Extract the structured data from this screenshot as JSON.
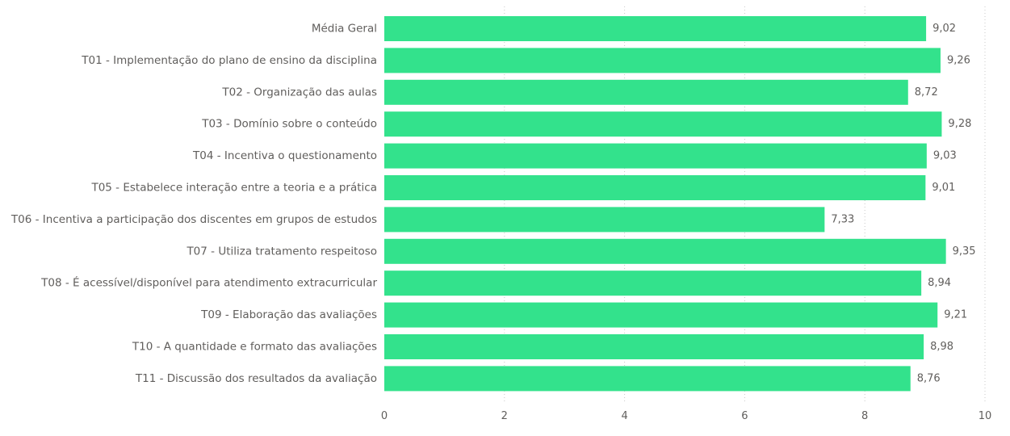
{
  "chart_data": {
    "type": "bar",
    "orientation": "horizontal",
    "categories": [
      "Média Geral",
      "T01 - Implementação do plano de ensino da disciplina",
      "T02 - Organização das aulas",
      "T03 - Domínio sobre o conteúdo",
      "T04 - Incentiva o questionamento",
      "T05 - Estabelece interação entre a teoria e a prática",
      "T06 - Incentiva a participação dos discentes em grupos de estudos",
      "T07 - Utiliza tratamento respeitoso",
      "T08 - É acessível/disponível para atendimento extracurricular",
      "T09 - Elaboração das avaliações",
      "T10 - A quantidade e formato das avaliações",
      "T11 - Discussão dos resultados da avaliação"
    ],
    "values": [
      9.02,
      9.26,
      8.72,
      9.28,
      9.03,
      9.01,
      7.33,
      9.35,
      8.94,
      9.21,
      8.98,
      8.76
    ],
    "value_labels": [
      "9,02",
      "9,26",
      "8,72",
      "9,28",
      "9,03",
      "9,01",
      "7,33",
      "9,35",
      "8,94",
      "9,21",
      "8,98",
      "8,76"
    ],
    "xlim": [
      0,
      10
    ],
    "xticks": [
      0,
      2,
      4,
      6,
      8,
      10
    ],
    "xtick_labels": [
      "0",
      "2",
      "4",
      "6",
      "8",
      "10"
    ],
    "grid": "vertical dotted",
    "bar_color": "#33E28C",
    "title": "",
    "xlabel": "",
    "ylabel": ""
  }
}
